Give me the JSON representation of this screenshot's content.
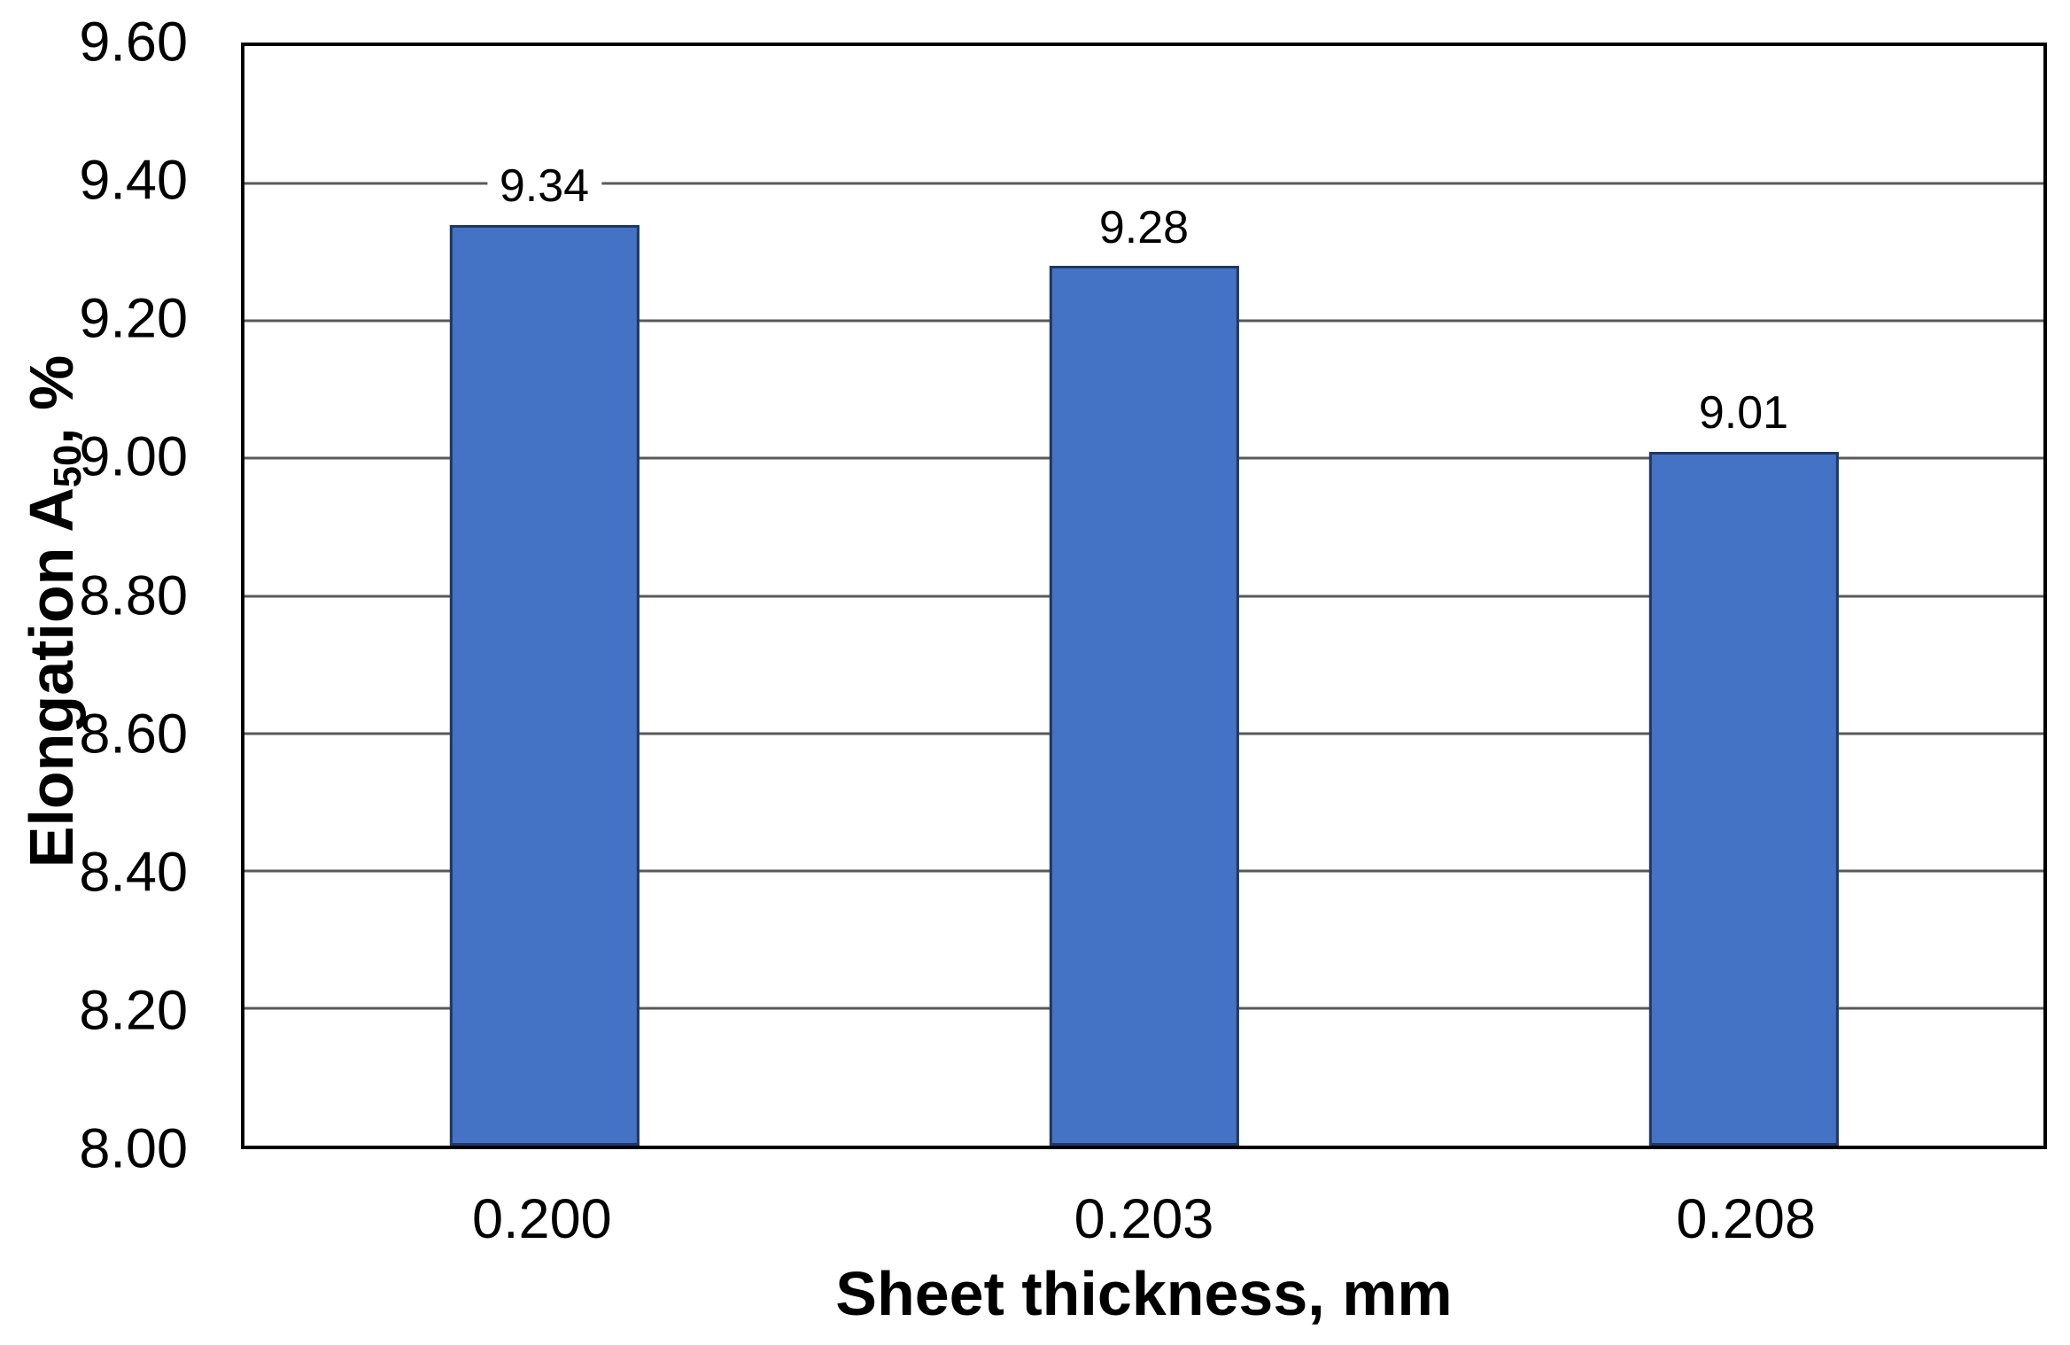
{
  "chart_data": {
    "type": "bar",
    "title": "",
    "categories": [
      "0.200",
      "0.203",
      "0.208"
    ],
    "values": [
      9.34,
      9.28,
      9.01
    ],
    "data_labels": [
      "9.34",
      "9.28",
      "9.01"
    ],
    "xlabel": "Sheet thickness, mm",
    "ylabel": {
      "prefix": "Elongation A",
      "sub": "50",
      "suffix": ", %"
    },
    "ylim": [
      8.0,
      9.6
    ],
    "ytick_step": 0.2,
    "yticks": [
      "9.60",
      "9.40",
      "9.20",
      "9.00",
      "8.80",
      "8.60",
      "8.40",
      "8.20",
      "8.00"
    ],
    "grid": "horizontal-only",
    "legend": "none",
    "bar_width_pct": 10.55,
    "colors": {
      "bar_fill": "#4472C4",
      "bar_border": "#1F3864",
      "gridline": "#595959",
      "plot_border": "#000000",
      "text": "#000000",
      "background": "#FFFFFF"
    }
  }
}
